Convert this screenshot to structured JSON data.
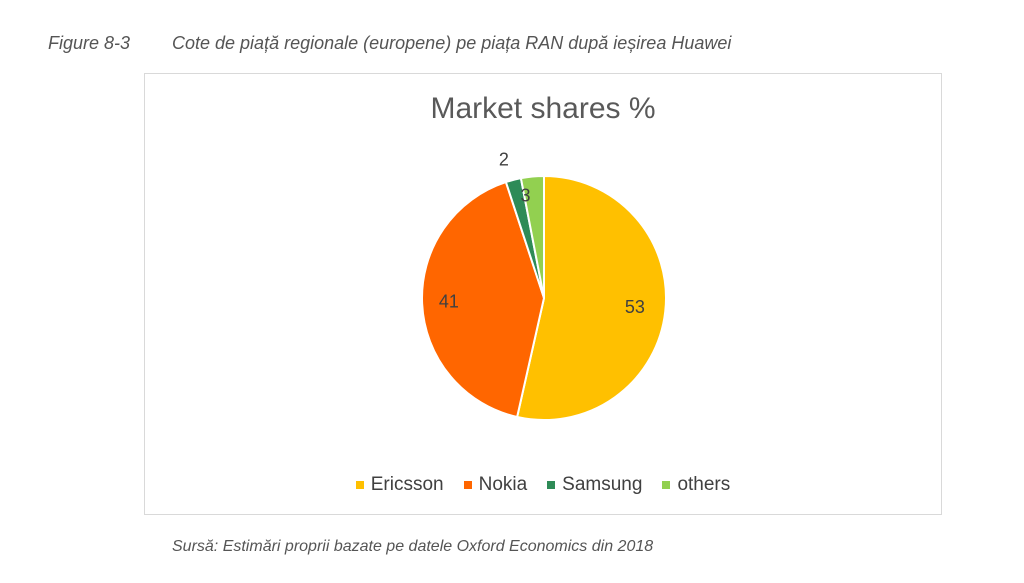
{
  "figure": {
    "number": "Figure 8-3",
    "caption": "Cote de piață regionale (europene) pe piața RAN după ieșirea Huawei"
  },
  "source": "Sursă: Estimări proprii bazate pe datele Oxford Economics din 2018",
  "chart_data": {
    "type": "pie",
    "title": "Market shares %",
    "categories": [
      "Ericsson",
      "Nokia",
      "Samsung",
      "others"
    ],
    "values": [
      53,
      41,
      2,
      3
    ],
    "colors": [
      "#FFC000",
      "#FF6600",
      "#2E8B57",
      "#92D050"
    ],
    "legend": "bottom"
  }
}
